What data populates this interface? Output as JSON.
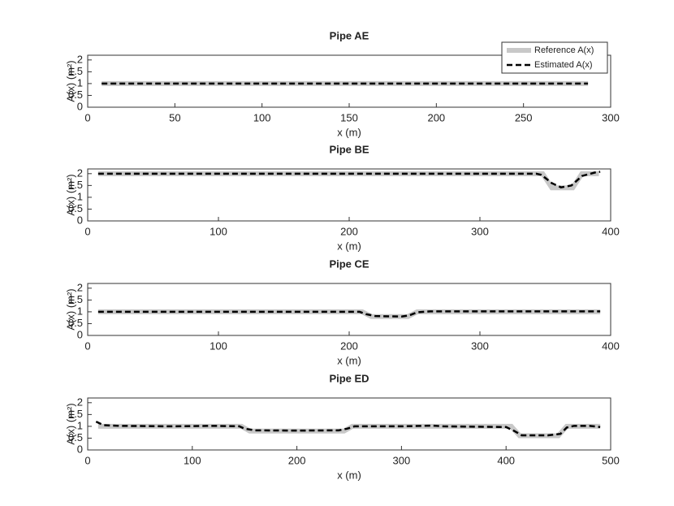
{
  "chart_data": [
    {
      "type": "line",
      "title": "Pipe AE",
      "xlabel": "x (m)",
      "ylabel": "A(x) (m²)",
      "xlim": [
        0,
        300
      ],
      "xticks": [
        0,
        50,
        100,
        150,
        200,
        250,
        300
      ],
      "ylim": [
        0,
        2.2
      ],
      "yticks": [
        0,
        0.5,
        1,
        1.5,
        2
      ],
      "legend": "upper right",
      "series": [
        {
          "name": "Reference A(x)",
          "color": "#c8c8c8",
          "x": [
            8,
            287
          ],
          "values": [
            1,
            1
          ]
        },
        {
          "name": "Estimated A(x)",
          "color": "#000000",
          "x": [
            8,
            287
          ],
          "values": [
            1,
            1
          ]
        }
      ]
    },
    {
      "type": "line",
      "title": "Pipe BE",
      "xlabel": "x (m)",
      "ylabel": "A(x) (m²)",
      "xlim": [
        0,
        400
      ],
      "xticks": [
        0,
        100,
        200,
        300,
        400
      ],
      "ylim": [
        0,
        2.2
      ],
      "yticks": [
        0,
        0.5,
        1,
        1.5,
        2
      ],
      "series": [
        {
          "color": "#c8c8c8",
          "x": [
            8,
            348,
            355,
            371,
            378,
            391
          ],
          "values": [
            2,
            2,
            1.4,
            1.4,
            2,
            2
          ]
        },
        {
          "color": "#000000",
          "x": [
            8,
            343,
            347,
            355,
            362,
            370,
            378,
            388,
            392
          ],
          "values": [
            2,
            2,
            1.95,
            1.6,
            1.42,
            1.5,
            1.9,
            2.05,
            2.08
          ]
        }
      ]
    },
    {
      "type": "line",
      "title": "Pipe CE",
      "xlabel": "x (m)",
      "ylabel": "A(x) (m²)",
      "xlim": [
        0,
        400
      ],
      "xticks": [
        0,
        100,
        200,
        300,
        400
      ],
      "ylim": [
        0,
        2.2
      ],
      "yticks": [
        0,
        0.5,
        1,
        1.5,
        2
      ],
      "series": [
        {
          "color": "#c8c8c8",
          "x": [
            8,
            210,
            217,
            245,
            252,
            392
          ],
          "values": [
            1,
            1,
            0.8,
            0.8,
            1,
            1
          ]
        },
        {
          "color": "#000000",
          "x": [
            8,
            208,
            213,
            220,
            240,
            246,
            252,
            262,
            392
          ],
          "values": [
            1,
            1,
            0.9,
            0.82,
            0.8,
            0.85,
            0.98,
            1.02,
            1.02
          ]
        }
      ]
    },
    {
      "type": "line",
      "title": "Pipe ED",
      "xlabel": "x (m)",
      "ylabel": "A(x) (m²)",
      "xlim": [
        0,
        500
      ],
      "xticks": [
        0,
        100,
        200,
        300,
        400,
        500
      ],
      "ylim": [
        0,
        2.2
      ],
      "yticks": [
        0,
        0.5,
        1,
        1.5,
        2
      ],
      "series": [
        {
          "color": "#c8c8c8",
          "x": [
            10,
            147,
            155,
            245,
            253,
            405,
            413,
            450,
            458,
            490
          ],
          "values": [
            1,
            1,
            0.8,
            0.8,
            1,
            1,
            0.6,
            0.6,
            1,
            1
          ]
        },
        {
          "color": "#000000",
          "x": [
            8,
            15,
            30,
            80,
            120,
            145,
            150,
            160,
            200,
            240,
            248,
            255,
            300,
            330,
            340,
            400,
            408,
            415,
            440,
            452,
            458,
            465,
            480,
            490
          ],
          "values": [
            1.2,
            1.05,
            1.02,
            1,
            1.02,
            1,
            0.9,
            0.83,
            0.82,
            0.83,
            0.9,
            1,
            1,
            1.03,
            1,
            0.97,
            0.8,
            0.62,
            0.62,
            0.68,
            0.95,
            1.02,
            1.02,
            0.97
          ]
        }
      ]
    }
  ]
}
